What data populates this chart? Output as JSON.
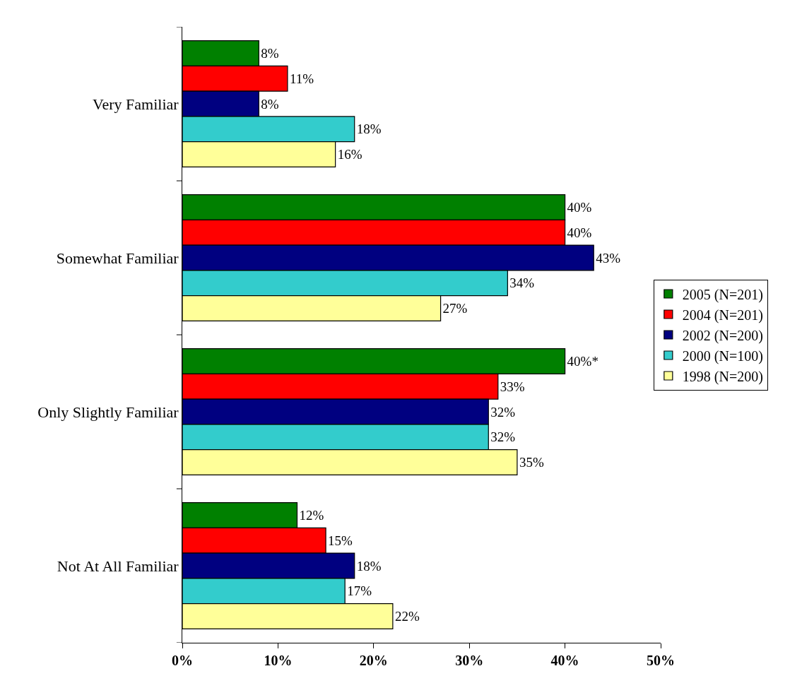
{
  "chart_data": {
    "type": "bar",
    "orientation": "horizontal",
    "categories": [
      "Very Familiar",
      "Somewhat Familiar",
      "Only Slightly Familiar",
      "Not At All Familiar"
    ],
    "series": [
      {
        "name": "2005 (N=201)",
        "color": "#008000",
        "values": [
          8,
          40,
          40,
          12
        ],
        "value_labels": [
          "8%",
          "40%",
          "40%*",
          "12%"
        ]
      },
      {
        "name": "2004 (N=201)",
        "color": "#ff0000",
        "values": [
          11,
          40,
          33,
          15
        ],
        "value_labels": [
          "11%",
          "40%",
          "33%",
          "15%"
        ]
      },
      {
        "name": "2002 (N=200)",
        "color": "#000080",
        "values": [
          8,
          43,
          32,
          18
        ],
        "value_labels": [
          "8%",
          "43%",
          "32%",
          "18%"
        ]
      },
      {
        "name": "2000 (N=100)",
        "color": "#33cccc",
        "values": [
          18,
          34,
          32,
          17
        ],
        "value_labels": [
          "18%",
          "34%",
          "32%",
          "17%"
        ]
      },
      {
        "name": "1998 (N=200)",
        "color": "#ffff99",
        "values": [
          16,
          27,
          35,
          22
        ],
        "value_labels": [
          "16%",
          "27%",
          "35%",
          "22%"
        ]
      }
    ],
    "xlim": [
      0,
      50
    ],
    "xticks": [
      {
        "value": 0,
        "label": "0%"
      },
      {
        "value": 10,
        "label": "10%"
      },
      {
        "value": 20,
        "label": "20%"
      },
      {
        "value": 30,
        "label": "30%"
      },
      {
        "value": 40,
        "label": "40%"
      },
      {
        "value": 50,
        "label": "50%"
      }
    ],
    "grid": false,
    "legend": "right"
  }
}
